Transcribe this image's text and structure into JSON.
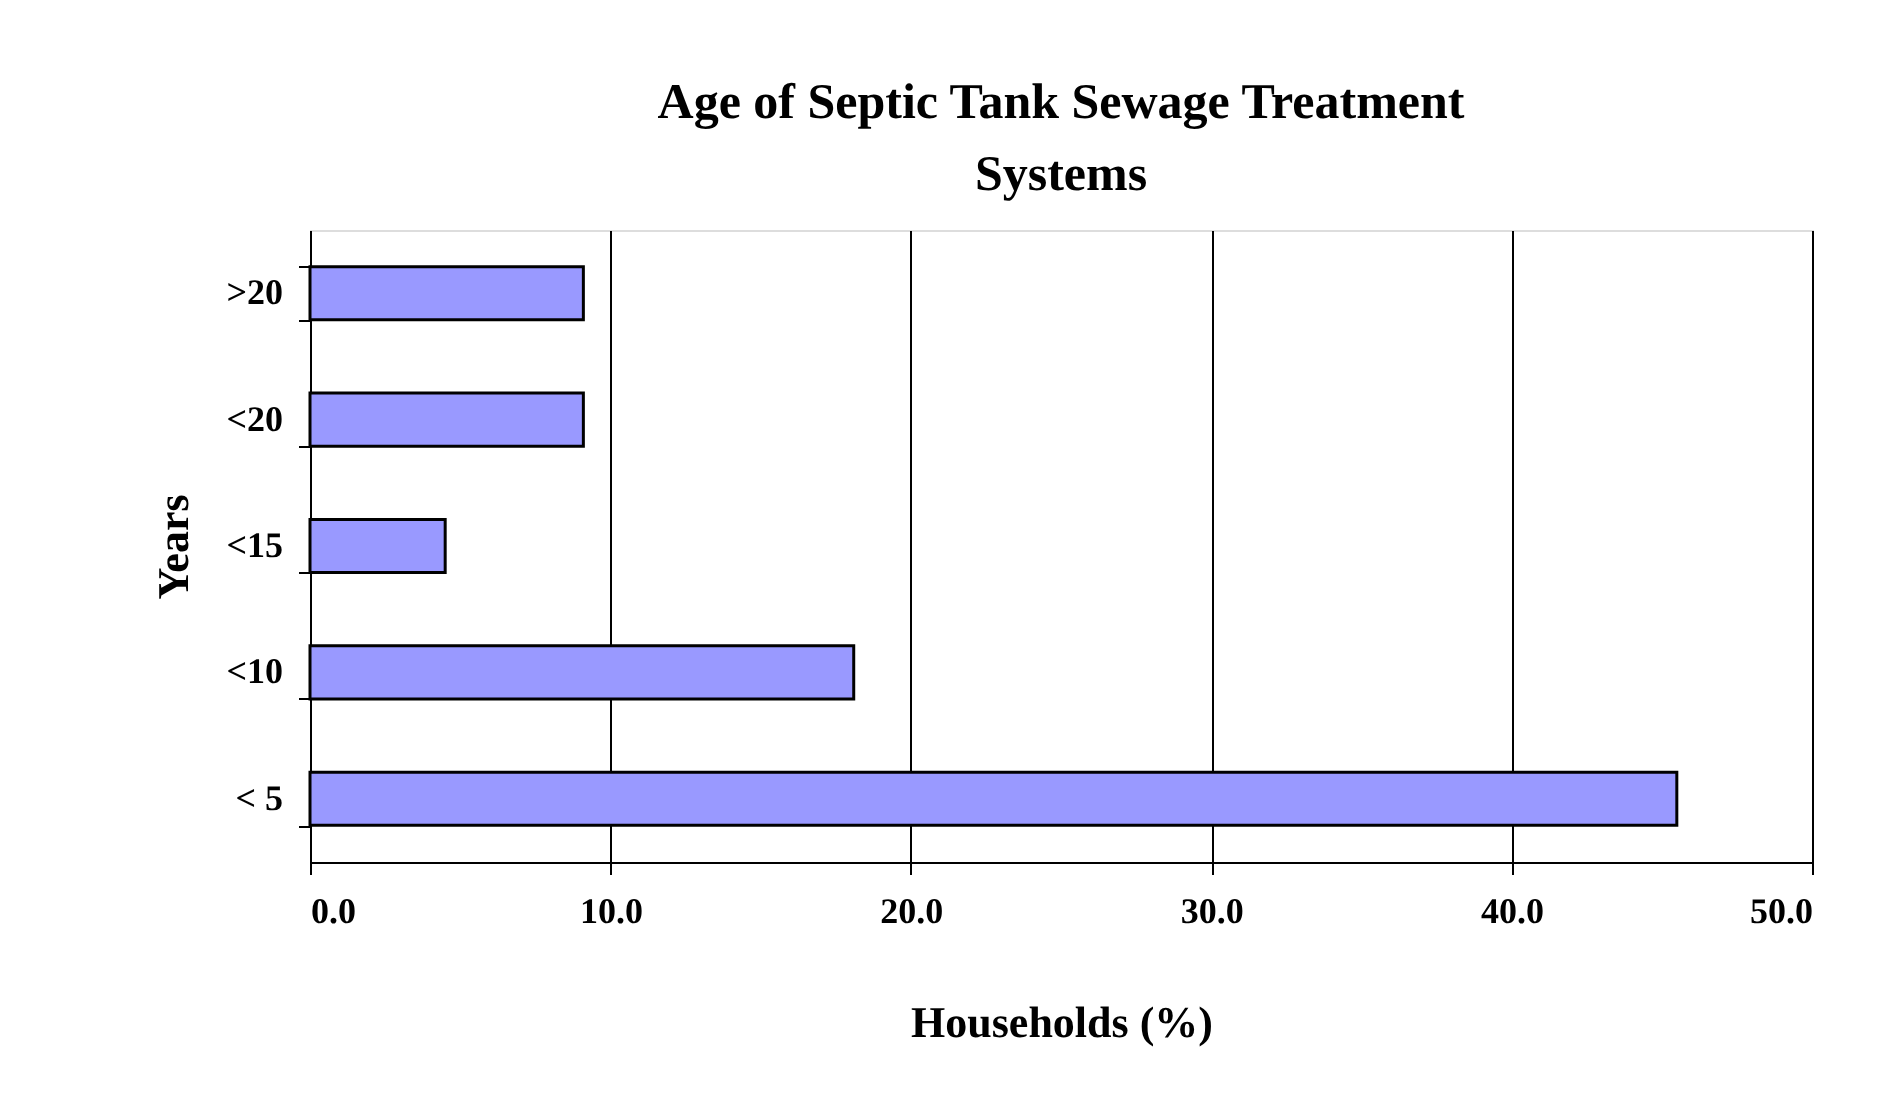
{
  "chart_data": {
    "type": "bar",
    "orientation": "horizontal",
    "title": "Age of Septic Tank Sewage Treatment Systems",
    "xlabel": "Households (%)",
    "ylabel": "Years",
    "categories": [
      ">20",
      "<20",
      "<15",
      "<10",
      "< 5"
    ],
    "values": [
      9.1,
      9.1,
      4.5,
      18.1,
      45.5
    ],
    "color": "#9999ff",
    "xlim": [
      0,
      50
    ],
    "xticks": [
      {
        "value": 0,
        "label": "0.0"
      },
      {
        "value": 10,
        "label": "10.0"
      },
      {
        "value": 20,
        "label": "20.0"
      },
      {
        "value": 30,
        "label": "30.0"
      },
      {
        "value": 40,
        "label": "40.0"
      },
      {
        "value": 50,
        "label": "50.0"
      }
    ],
    "grid": "x"
  }
}
